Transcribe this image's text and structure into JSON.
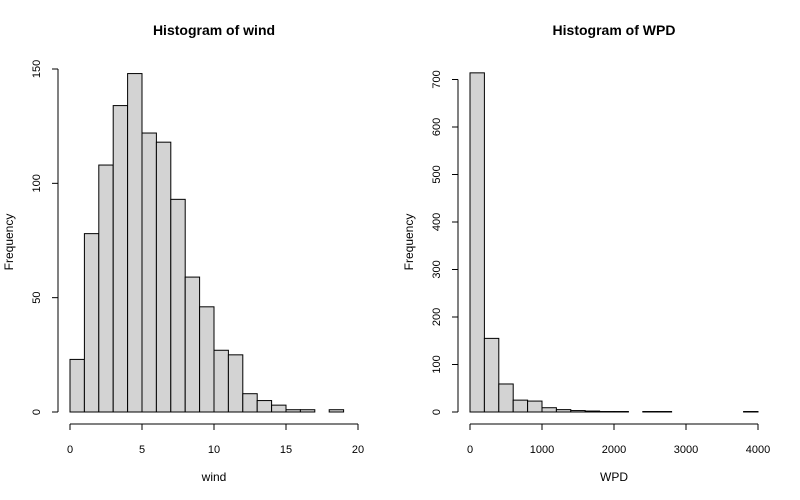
{
  "chart_data": [
    {
      "type": "bar",
      "title": "Histogram of wind",
      "xlabel": "wind",
      "ylabel": "Frequency",
      "xlim": [
        0,
        20
      ],
      "ylim": [
        0,
        150
      ],
      "x_ticks": [
        0,
        5,
        10,
        15,
        20
      ],
      "y_ticks": [
        0,
        50,
        100,
        150
      ],
      "bin_edges": [
        0,
        1,
        2,
        3,
        4,
        5,
        6,
        7,
        8,
        9,
        10,
        11,
        12,
        13,
        14,
        15,
        16,
        17,
        18,
        19
      ],
      "values": [
        23,
        78,
        108,
        134,
        148,
        122,
        118,
        93,
        59,
        46,
        27,
        25,
        8,
        5,
        3,
        1,
        1,
        0,
        1
      ],
      "bar_color": "#d3d3d3",
      "grid": false
    },
    {
      "type": "bar",
      "title": "Histogram of WPD",
      "xlabel": "WPD",
      "ylabel": "Frequency",
      "xlim": [
        0,
        4000
      ],
      "ylim": [
        0,
        700
      ],
      "x_ticks": [
        0,
        1000,
        2000,
        3000,
        4000
      ],
      "y_ticks": [
        0,
        100,
        200,
        300,
        400,
        500,
        600,
        700
      ],
      "bin_edges": [
        0,
        200,
        400,
        600,
        800,
        1000,
        1200,
        1400,
        1600,
        1800,
        2000,
        2200,
        2400,
        2600,
        2800,
        3000,
        3200,
        3400,
        3600,
        3800,
        4000
      ],
      "values": [
        714,
        155,
        59,
        25,
        23,
        9,
        5,
        3,
        2,
        1,
        1,
        0,
        1,
        1,
        0,
        0,
        0,
        0,
        0,
        1
      ],
      "bar_color": "#d3d3d3",
      "grid": false
    }
  ]
}
